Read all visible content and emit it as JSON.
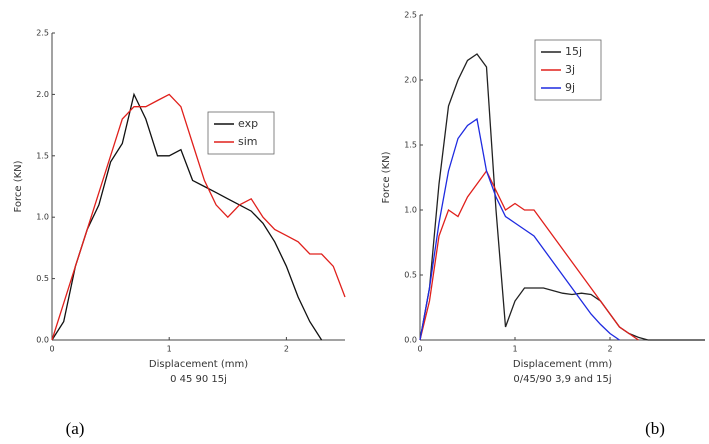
{
  "chart_data": [
    {
      "type": "line",
      "caption": "(a)",
      "x_label": "Displacement (mm)",
      "subtitle": "0 45 90  15j",
      "y_label": "Force (KN)",
      "xlim": [
        0,
        2.5
      ],
      "xticks": [
        0,
        1,
        2
      ],
      "ylim": [
        0,
        2.5
      ],
      "yticks": [
        {
          "value": 0,
          "label": "0.0"
        },
        0.5,
        {
          "value": 1,
          "label": "1.0"
        },
        1.5,
        {
          "value": 2,
          "label": "2.0"
        },
        2.5
      ],
      "x": [
        0,
        0.1,
        0.2,
        0.3,
        0.4,
        0.5,
        0.6,
        0.7,
        0.8,
        0.9,
        1.0,
        1.1,
        1.2,
        1.3,
        1.4,
        1.5,
        1.6,
        1.7,
        1.8,
        1.9,
        2.0,
        2.1,
        2.2,
        2.3,
        2.4,
        2.5
      ],
      "series": [
        {
          "name": "exp",
          "color": "#111111",
          "values": [
            0,
            0.15,
            0.6,
            0.9,
            1.1,
            1.45,
            1.6,
            2.0,
            1.8,
            1.5,
            1.5,
            1.55,
            1.3,
            1.25,
            1.2,
            1.15,
            1.1,
            1.05,
            0.95,
            0.8,
            0.6,
            0.35,
            0.15,
            0,
            null,
            null
          ]
        },
        {
          "name": "sim",
          "color": "#e0201c",
          "values": [
            0,
            0.3,
            0.6,
            0.9,
            1.2,
            1.5,
            1.8,
            1.9,
            1.9,
            1.95,
            2.0,
            1.9,
            1.6,
            1.3,
            1.1,
            1.0,
            1.1,
            1.15,
            1.0,
            0.9,
            0.85,
            0.8,
            0.7,
            0.7,
            0.6,
            0.35
          ]
        }
      ]
    },
    {
      "type": "line",
      "caption": "(b)",
      "x_label": "Displacement (mm)",
      "subtitle": "0/45/90  3,9 and 15j",
      "y_label": "Force (KN)",
      "xlim": [
        0,
        3
      ],
      "xticks": [
        0,
        1,
        2
      ],
      "ylim": [
        0,
        2.5
      ],
      "yticks": [
        {
          "value": 0,
          "label": "0.0"
        },
        0.5,
        {
          "value": 1,
          "label": "1.0"
        },
        1.5,
        {
          "value": 2,
          "label": "2.0"
        },
        2.5
      ],
      "x": [
        0,
        0.1,
        0.2,
        0.3,
        0.4,
        0.5,
        0.6,
        0.7,
        0.8,
        0.9,
        1.0,
        1.1,
        1.2,
        1.3,
        1.4,
        1.5,
        1.6,
        1.7,
        1.8,
        1.9,
        2.0,
        2.1,
        2.2,
        2.3,
        2.4,
        2.5,
        2.6,
        2.7,
        2.8,
        2.9,
        3.0
      ],
      "series": [
        {
          "name": "15j",
          "color": "#222222",
          "values": [
            0,
            0.4,
            1.2,
            1.8,
            2.0,
            2.15,
            2.2,
            2.1,
            1.0,
            0.1,
            0.3,
            0.4,
            0.4,
            0.4,
            0.38,
            0.36,
            0.35,
            0.36,
            0.35,
            0.3,
            0.2,
            0.1,
            0.05,
            0.02,
            0,
            0,
            0,
            0,
            0,
            0,
            0
          ]
        },
        {
          "name": "3j",
          "color": "#e0201c",
          "values": [
            0,
            0.3,
            0.8,
            1.0,
            0.95,
            1.1,
            1.2,
            1.3,
            1.15,
            1.0,
            1.05,
            1.0,
            1.0,
            0.9,
            0.8,
            0.7,
            0.6,
            0.5,
            0.4,
            0.3,
            0.2,
            0.1,
            0.05,
            0,
            null,
            null,
            null,
            null,
            null,
            null,
            null
          ]
        },
        {
          "name": "9j",
          "color": "#1f2be0",
          "values": [
            0,
            0.4,
            0.9,
            1.3,
            1.55,
            1.65,
            1.7,
            1.3,
            1.1,
            0.95,
            0.9,
            0.85,
            0.8,
            0.7,
            0.6,
            0.5,
            0.4,
            0.3,
            0.2,
            0.12,
            0.05,
            0,
            null,
            null,
            null,
            null,
            null,
            null,
            null,
            null,
            null
          ]
        }
      ]
    }
  ]
}
